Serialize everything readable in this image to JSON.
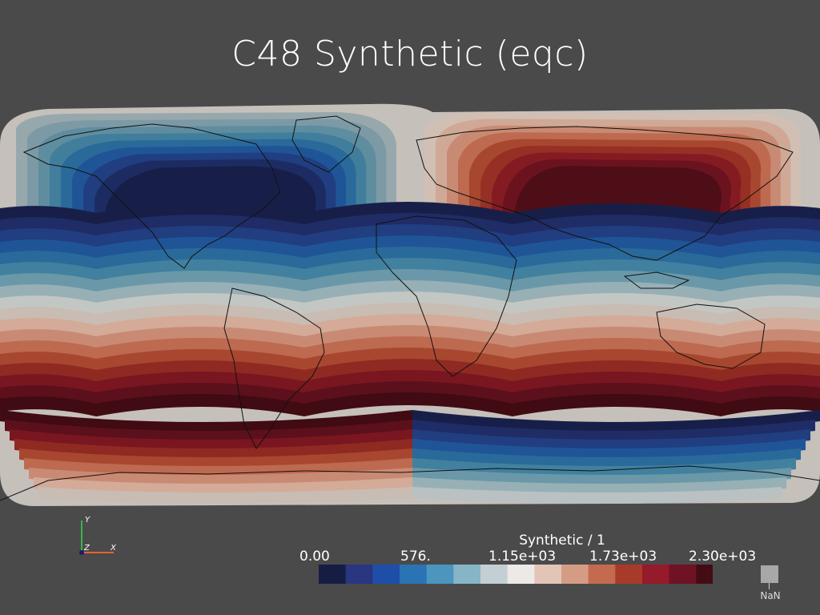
{
  "title": "C48 Synthetic (eqc)",
  "colorbar": {
    "title": "Synthetic / 1",
    "labels": [
      "0.00",
      "576.",
      "1.15e+03",
      "1.73e+03",
      "2.30e+03"
    ],
    "colors": [
      "#161d45",
      "#2a3680",
      "#1f4ea8",
      "#2a73b4",
      "#4b95bf",
      "#86b5c8",
      "#c3cfd3",
      "#ede9e6",
      "#e3c5b8",
      "#d59c84",
      "#c46a4f",
      "#a83a2a",
      "#951a2a",
      "#6e1224",
      "#440c14"
    ],
    "nan_label": "NaN",
    "nan_color": "#a8a8a8"
  },
  "axes": {
    "y": "Y",
    "x": "X",
    "z": "Z"
  }
}
